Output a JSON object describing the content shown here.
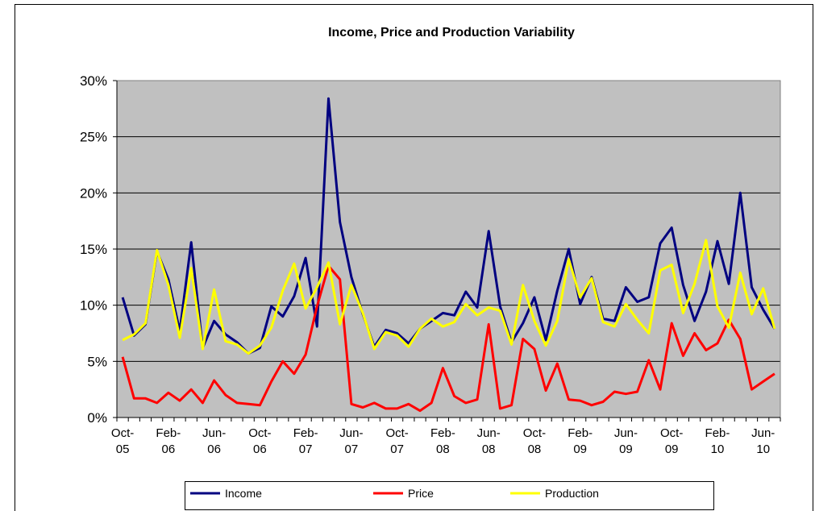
{
  "chart_data": {
    "type": "line",
    "title": "Income,  Price and Production Variability",
    "categories": [
      "Oct-05",
      null,
      null,
      null,
      "Feb-06",
      null,
      null,
      null,
      "Jun-06",
      null,
      null,
      null,
      "Oct-06",
      null,
      null,
      null,
      "Feb-07",
      null,
      null,
      null,
      "Jun-07",
      null,
      null,
      null,
      "Oct-07",
      null,
      null,
      null,
      "Feb-08",
      null,
      null,
      null,
      "Jun-08",
      null,
      null,
      null,
      "Oct-08",
      null,
      null,
      null,
      "Feb-09",
      null,
      null,
      null,
      "Jun-09",
      null,
      null,
      null,
      "Oct-09",
      null,
      null,
      null,
      "Feb-10",
      null,
      null,
      null,
      "Jun-10",
      null
    ],
    "series": [
      {
        "name": "Income",
        "color": "#000080",
        "values": [
          10.7,
          7.3,
          8.3,
          14.8,
          12.3,
          7.7,
          15.6,
          6.2,
          8.6,
          7.4,
          6.7,
          5.7,
          6.2,
          9.9,
          9.0,
          10.8,
          14.2,
          8.1,
          28.4,
          17.4,
          12.5,
          9.2,
          6.3,
          7.8,
          7.5,
          6.6,
          7.9,
          8.6,
          9.3,
          9.1,
          11.2,
          9.8,
          16.6,
          9.9,
          6.7,
          8.4,
          10.7,
          6.9,
          11.3,
          15.0,
          10.1,
          12.5,
          8.8,
          8.6,
          11.6,
          10.3,
          10.7,
          15.5,
          16.9,
          11.8,
          8.6,
          11.2,
          15.7,
          11.9,
          20.0,
          11.6,
          9.6,
          7.9
        ]
      },
      {
        "name": "Price",
        "color": "#ff0000",
        "values": [
          5.4,
          1.7,
          1.7,
          1.3,
          2.2,
          1.5,
          2.5,
          1.3,
          3.3,
          2.0,
          1.3,
          1.2,
          1.1,
          3.2,
          5.0,
          3.9,
          5.6,
          9.9,
          13.5,
          12.3,
          1.2,
          0.9,
          1.3,
          0.8,
          0.8,
          1.2,
          0.6,
          1.3,
          4.4,
          1.9,
          1.3,
          1.6,
          8.3,
          0.8,
          1.1,
          7.0,
          6.1,
          2.4,
          4.8,
          1.6,
          1.5,
          1.1,
          1.4,
          2.3,
          2.1,
          2.3,
          5.1,
          2.5,
          8.4,
          5.5,
          7.5,
          6.0,
          6.6,
          8.7,
          7.0,
          2.5,
          3.2,
          3.9
        ]
      },
      {
        "name": "Production",
        "color": "#ffff00",
        "values": [
          6.9,
          7.4,
          8.4,
          14.9,
          11.8,
          7.1,
          13.3,
          6.1,
          11.4,
          6.8,
          6.5,
          5.7,
          6.4,
          8.0,
          11.3,
          13.7,
          9.7,
          11.6,
          13.8,
          8.3,
          11.8,
          9.3,
          6.1,
          7.6,
          7.3,
          6.3,
          7.9,
          8.8,
          8.1,
          8.5,
          10.1,
          9.1,
          9.8,
          9.5,
          6.5,
          11.8,
          8.6,
          6.4,
          8.6,
          14.1,
          10.7,
          12.4,
          8.5,
          8.1,
          10.1,
          8.7,
          7.5,
          13.1,
          13.6,
          9.3,
          11.9,
          15.8,
          9.9,
          8.0,
          12.9,
          9.2,
          11.5,
          7.9
        ]
      }
    ],
    "ylim": [
      0,
      30
    ],
    "yticks": [
      {
        "value": 0,
        "label": "0%"
      },
      {
        "value": 5,
        "label": "5%"
      },
      {
        "value": 10,
        "label": "10%"
      },
      {
        "value": 15,
        "label": "15%"
      },
      {
        "value": 20,
        "label": "20%"
      },
      {
        "value": 25,
        "label": "25%"
      },
      {
        "value": 30,
        "label": "30%"
      }
    ],
    "grid": true,
    "legend": "bottom"
  }
}
